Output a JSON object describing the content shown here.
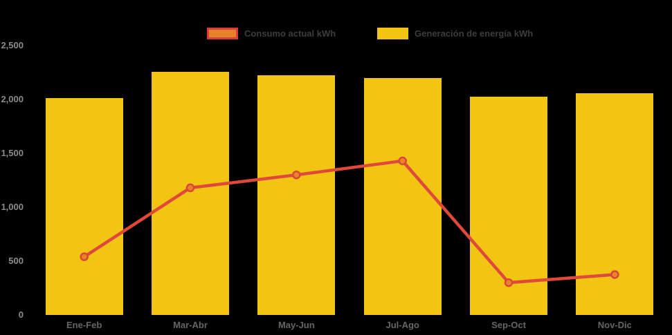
{
  "page": {
    "background": "#000000"
  },
  "legend": {
    "items": [
      {
        "label": "Consumo actual kWh",
        "swatch_fill": "#E5822B",
        "swatch_border": "#DC3E35"
      },
      {
        "label": "Generación de energía kWh",
        "swatch_fill": "#F2C512",
        "swatch_border": "#F2C512"
      }
    ],
    "text_color": "#3D3D3D"
  },
  "chart_data": {
    "type": "combo",
    "categories": [
      "Ene-Feb",
      "Mar-Abr",
      "May-Jun",
      "Jul-Ago",
      "Sep-Oct",
      "Nov-Dic"
    ],
    "series": [
      {
        "name": "Consumo actual kWh",
        "type": "line",
        "color": "#E0483C",
        "point_fill": "#E5862B",
        "point_stroke": "#DC4437",
        "values": [
          540,
          1180,
          1300,
          1430,
          300,
          375
        ]
      },
      {
        "name": "Generación de energía kWh",
        "type": "bar",
        "color": "#F2C512",
        "values": [
          2015,
          2255,
          2225,
          2200,
          2025,
          2055
        ]
      }
    ],
    "ylabel": "",
    "xlabel": "",
    "ylim": [
      0,
      2500
    ],
    "yticks": [
      {
        "value": 0,
        "label": "0"
      },
      {
        "value": 500,
        "label": "500"
      },
      {
        "value": 1000,
        "label": "1,000"
      },
      {
        "value": 1500,
        "label": "1,500"
      },
      {
        "value": 2000,
        "label": "2,000"
      },
      {
        "value": 2500,
        "label": "2,500"
      }
    ],
    "grid": false,
    "legend_position": "top",
    "y_tick_color": "#8C8C8C",
    "x_tick_color": "#666666"
  }
}
